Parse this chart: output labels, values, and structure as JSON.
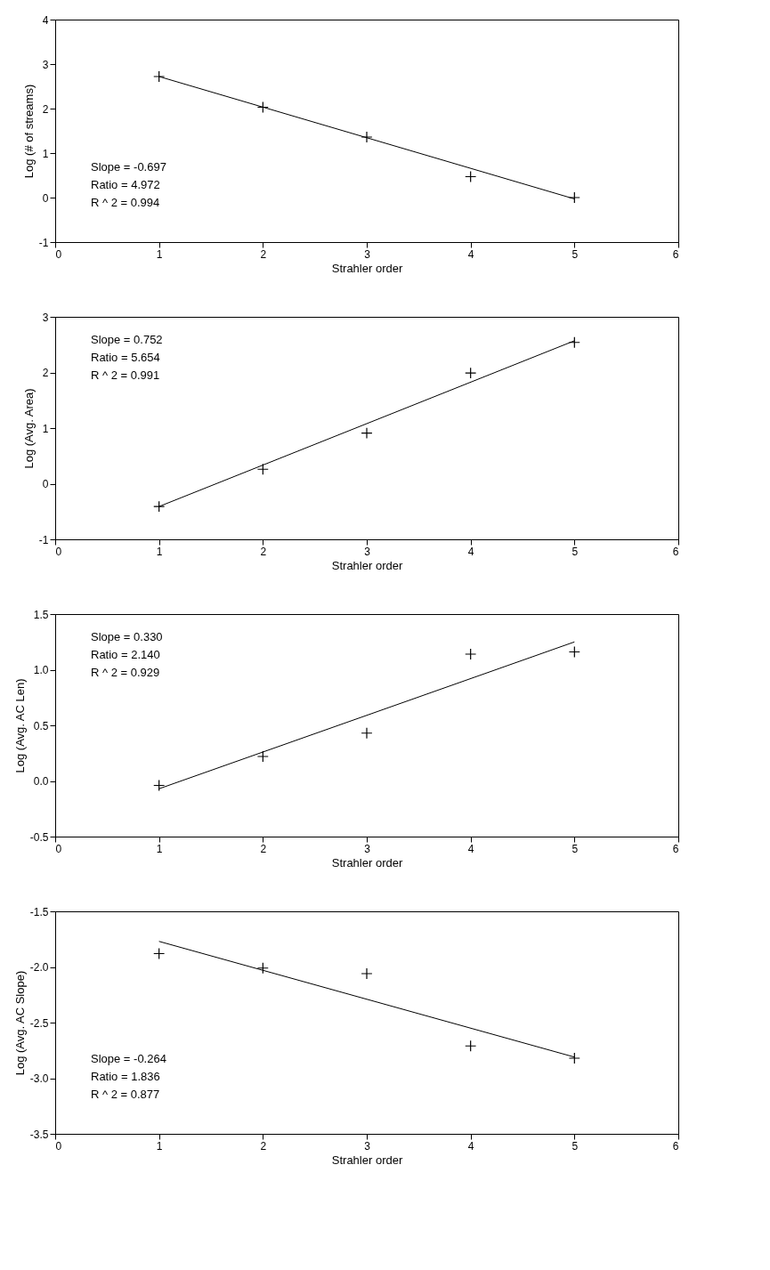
{
  "chart_data": [
    {
      "type": "scatter",
      "xlabel": "Strahler order",
      "ylabel": "Log (# of streams)",
      "xlim": [
        0,
        6
      ],
      "xticks": [
        0,
        1,
        2,
        3,
        4,
        5,
        6
      ],
      "ylim": [
        -1,
        4
      ],
      "yticks": [
        -1,
        0,
        1,
        2,
        3,
        4
      ],
      "grid": false,
      "marker": "cross",
      "annotations": [
        "Slope =   -0.697",
        "Ratio =   4.972",
        "R ^ 2 =   0.994"
      ],
      "series": [
        {
          "color": "#000000",
          "x": [
            1,
            2,
            3,
            4,
            5
          ],
          "values": [
            2.72,
            2.03,
            1.36,
            0.47,
            0.0
          ]
        },
        {
          "type": "line",
          "marker": "none",
          "line_style": "solid",
          "color": "#000000",
          "x": [
            1,
            5
          ],
          "values": [
            2.72,
            -0.03
          ]
        }
      ]
    },
    {
      "type": "scatter",
      "xlabel": "Strahler order",
      "ylabel": "Log (Avg. Area)",
      "xlim": [
        0,
        6
      ],
      "xticks": [
        0,
        1,
        2,
        3,
        4,
        5,
        6
      ],
      "ylim": [
        -1,
        3
      ],
      "yticks": [
        -1,
        0,
        1,
        2,
        3
      ],
      "grid": false,
      "marker": "cross",
      "annotations": [
        "Slope =   0.752",
        "Ratio =   5.654",
        "R ^ 2 =   0.991"
      ],
      "series": [
        {
          "color": "#000000",
          "x": [
            1,
            2,
            3,
            4,
            5
          ],
          "values": [
            -0.41,
            0.26,
            0.91,
            1.99,
            2.54
          ]
        },
        {
          "type": "line",
          "marker": "none",
          "line_style": "solid",
          "color": "#000000",
          "x": [
            1,
            5
          ],
          "values": [
            -0.41,
            2.57
          ]
        }
      ]
    },
    {
      "type": "scatter",
      "xlabel": "Strahler order",
      "ylabel": "Log (Avg. AC Len)",
      "xlim": [
        0,
        6
      ],
      "xticks": [
        0,
        1,
        2,
        3,
        4,
        5,
        6
      ],
      "ylim": [
        -0.5,
        1.5
      ],
      "yticks": [
        -0.5,
        {
          "value": 0,
          "label": "0.0"
        },
        0.5,
        {
          "value": 1,
          "label": "1.0"
        },
        1.5
      ],
      "grid": false,
      "marker": "cross",
      "annotations": [
        "Slope =   0.330",
        "Ratio =   2.140",
        "R ^ 2 =   0.929"
      ],
      "series": [
        {
          "color": "#000000",
          "x": [
            1,
            2,
            3,
            4,
            5
          ],
          "values": [
            -0.04,
            0.22,
            0.43,
            1.14,
            1.16
          ]
        },
        {
          "type": "line",
          "marker": "none",
          "line_style": "solid",
          "color": "#000000",
          "x": [
            1,
            5
          ],
          "values": [
            -0.07,
            1.25
          ]
        }
      ]
    },
    {
      "type": "scatter",
      "xlabel": "Strahler order",
      "ylabel": "Log (Avg. AC Slope)",
      "xlim": [
        0,
        6
      ],
      "xticks": [
        0,
        1,
        2,
        3,
        4,
        5,
        6
      ],
      "ylim": [
        -3.5,
        -1.5
      ],
      "yticks": [
        -3.5,
        {
          "value": -3,
          "label": "-3.0"
        },
        -2.5,
        {
          "value": -2,
          "label": "-2.0"
        },
        -1.5
      ],
      "grid": false,
      "marker": "cross",
      "annotations": [
        "Slope =   -0.264",
        "Ratio =   1.836",
        "R ^ 2 =   0.877"
      ],
      "series": [
        {
          "color": "#000000",
          "x": [
            1,
            2,
            3,
            4,
            5
          ],
          "values": [
            -1.88,
            -2.01,
            -2.06,
            -2.71,
            -2.82
          ]
        },
        {
          "type": "line",
          "marker": "none",
          "line_style": "solid",
          "color": "#000000",
          "x": [
            1,
            5
          ],
          "values": [
            -1.77,
            -2.81
          ]
        }
      ]
    }
  ]
}
